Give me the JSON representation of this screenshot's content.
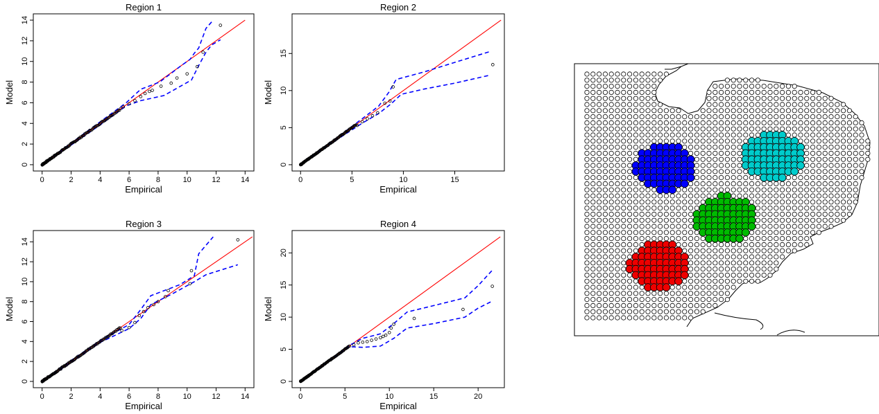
{
  "figure": {
    "panels_label": "qq-plots",
    "map_label": "region-map"
  },
  "chart_data": [
    {
      "type": "scatter",
      "title": "Region  1",
      "xlabel": "Empirical",
      "ylabel": "Model",
      "xlim": [
        0,
        14
      ],
      "ylim": [
        0,
        14
      ],
      "xticks": [
        0,
        2,
        4,
        6,
        8,
        10,
        12,
        14
      ],
      "yticks": [
        0,
        2,
        4,
        6,
        8,
        10,
        12,
        14
      ],
      "reference_line": "y = x",
      "colors": {
        "points": "#000000",
        "reference": "#ff0000",
        "envelope": "#0000ff"
      },
      "points_tail": [
        [
          5.6,
          5.6
        ],
        [
          6.0,
          5.9
        ],
        [
          6.4,
          6.2
        ],
        [
          6.8,
          6.6
        ],
        [
          7.1,
          6.9
        ],
        [
          7.4,
          7.1
        ],
        [
          7.6,
          7.2
        ],
        [
          8.2,
          7.6
        ],
        [
          8.9,
          7.9
        ],
        [
          9.3,
          8.4
        ],
        [
          10.0,
          8.8
        ],
        [
          10.7,
          9.5
        ],
        [
          11.1,
          10.9
        ],
        [
          12.3,
          13.5
        ]
      ],
      "envelope_upper": [
        [
          0,
          0.05
        ],
        [
          2,
          2.1
        ],
        [
          4,
          4.15
        ],
        [
          5.8,
          6.0
        ],
        [
          6.8,
          7.3
        ],
        [
          8.1,
          8.0
        ],
        [
          9.6,
          9.6
        ],
        [
          10.2,
          10.2
        ],
        [
          10.5,
          10.8
        ],
        [
          10.8,
          11.3
        ],
        [
          11.3,
          13.2
        ],
        [
          11.8,
          14
        ]
      ],
      "envelope_lower": [
        [
          0,
          -0.05
        ],
        [
          2,
          1.9
        ],
        [
          4,
          3.85
        ],
        [
          5.8,
          5.7
        ],
        [
          6.8,
          6.2
        ],
        [
          8.4,
          6.7
        ],
        [
          10.3,
          8.2
        ],
        [
          10.8,
          9.6
        ],
        [
          11.3,
          10.9
        ],
        [
          11.7,
          11.6
        ],
        [
          12.3,
          12.1
        ]
      ]
    },
    {
      "type": "scatter",
      "title": "Region  2",
      "xlabel": "Empirical",
      "ylabel": "Model",
      "xlim": [
        0,
        19
      ],
      "ylim": [
        0,
        19.5
      ],
      "xticks": [
        0,
        5,
        10,
        15
      ],
      "yticks": [
        0,
        5,
        10,
        15
      ],
      "reference_line": "y = x",
      "colors": {
        "points": "#000000",
        "reference": "#ff0000",
        "envelope": "#0000ff"
      },
      "points_tail": [
        [
          5.5,
          5.3
        ],
        [
          6.0,
          5.8
        ],
        [
          6.5,
          6.2
        ],
        [
          7.0,
          6.6
        ],
        [
          7.5,
          7.0
        ],
        [
          8.2,
          8.3
        ],
        [
          8.7,
          8.6
        ],
        [
          9.0,
          10.5
        ],
        [
          18.7,
          13.5
        ]
      ],
      "envelope_upper": [
        [
          0,
          0.05
        ],
        [
          3,
          3.1
        ],
        [
          6,
          6.2
        ],
        [
          7.6,
          7.9
        ],
        [
          8.6,
          9.8
        ],
        [
          9.3,
          11.5
        ],
        [
          12,
          12.5
        ],
        [
          15,
          13.8
        ],
        [
          18.5,
          15.3
        ]
      ],
      "envelope_lower": [
        [
          0,
          -0.05
        ],
        [
          3,
          2.9
        ],
        [
          6,
          5.6
        ],
        [
          7.6,
          6.9
        ],
        [
          8.8,
          8.2
        ],
        [
          9.8,
          9.5
        ],
        [
          12,
          10.2
        ],
        [
          15,
          11.0
        ],
        [
          18.5,
          12.1
        ]
      ]
    },
    {
      "type": "scatter",
      "title": "Region  3",
      "xlabel": "Empirical",
      "ylabel": "Model",
      "xlim": [
        0,
        14
      ],
      "ylim": [
        0,
        14.5
      ],
      "xticks": [
        0,
        2,
        4,
        6,
        8,
        10,
        12,
        14
      ],
      "yticks": [
        0,
        2,
        4,
        6,
        8,
        10,
        12,
        14
      ],
      "reference_line": "y = x",
      "colors": {
        "points": "#000000",
        "reference": "#ff0000",
        "envelope": "#0000ff"
      },
      "points_tail": [
        [
          5.5,
          5.1
        ],
        [
          6.0,
          5.4
        ],
        [
          6.4,
          5.9
        ],
        [
          6.7,
          6.6
        ],
        [
          7.0,
          7.0
        ],
        [
          7.3,
          7.4
        ],
        [
          7.7,
          7.7
        ],
        [
          8.0,
          8.0
        ],
        [
          8.5,
          8.5
        ],
        [
          8.7,
          9.1
        ],
        [
          10.2,
          9.8
        ],
        [
          10.3,
          11.1
        ],
        [
          13.5,
          14.2
        ]
      ],
      "envelope_upper": [
        [
          0,
          0.05
        ],
        [
          2,
          2.1
        ],
        [
          4,
          4.1
        ],
        [
          6,
          5.7
        ],
        [
          6.8,
          7.2
        ],
        [
          7.5,
          8.6
        ],
        [
          9.5,
          9.7
        ],
        [
          10.5,
          10.6
        ],
        [
          10.8,
          12.8
        ],
        [
          11.8,
          14.5
        ]
      ],
      "envelope_lower": [
        [
          0,
          -0.05
        ],
        [
          2,
          1.9
        ],
        [
          4,
          3.9
        ],
        [
          6,
          5.3
        ],
        [
          6.8,
          6.3
        ],
        [
          7.5,
          7.7
        ],
        [
          9.0,
          8.8
        ],
        [
          10.5,
          10.0
        ],
        [
          11.3,
          10.7
        ],
        [
          13.5,
          11.7
        ]
      ]
    },
    {
      "type": "scatter",
      "title": "Region  4",
      "xlabel": "Empirical",
      "ylabel": "Model",
      "xlim": [
        0,
        22
      ],
      "ylim": [
        0,
        22.5
      ],
      "xticks": [
        0,
        5,
        10,
        15,
        20
      ],
      "yticks": [
        0,
        5,
        10,
        15,
        20
      ],
      "reference_line": "y = x",
      "colors": {
        "points": "#000000",
        "reference": "#ff0000",
        "envelope": "#0000ff"
      },
      "points_tail": [
        [
          5.5,
          5.5
        ],
        [
          6.0,
          5.7
        ],
        [
          6.5,
          6.0
        ],
        [
          7.0,
          6.1
        ],
        [
          7.5,
          6.2
        ],
        [
          8.0,
          6.4
        ],
        [
          8.5,
          6.6
        ],
        [
          9.0,
          6.8
        ],
        [
          9.3,
          7.0
        ],
        [
          9.6,
          7.2
        ],
        [
          10.0,
          7.6
        ],
        [
          10.2,
          8.3
        ],
        [
          10.5,
          8.9
        ],
        [
          12.8,
          9.8
        ],
        [
          18.3,
          11.2
        ],
        [
          21.6,
          14.8
        ]
      ],
      "envelope_upper": [
        [
          0,
          0.05
        ],
        [
          3,
          3.1
        ],
        [
          5.5,
          5.6
        ],
        [
          7,
          6.7
        ],
        [
          9,
          7.4
        ],
        [
          10.5,
          9.0
        ],
        [
          12,
          10.8
        ],
        [
          15,
          11.8
        ],
        [
          18.5,
          13.0
        ],
        [
          20,
          14.9
        ],
        [
          21.6,
          17.3
        ]
      ],
      "envelope_lower": [
        [
          0,
          -0.05
        ],
        [
          3,
          2.9
        ],
        [
          5.5,
          5.4
        ],
        [
          7,
          5.3
        ],
        [
          9,
          5.5
        ],
        [
          10.5,
          6.7
        ],
        [
          12,
          8.3
        ],
        [
          15,
          9.0
        ],
        [
          18.5,
          10.0
        ],
        [
          20,
          11.4
        ],
        [
          21.6,
          12.5
        ]
      ]
    }
  ],
  "map": {
    "grid_fill": "#ffffff",
    "grid_stroke": "#000000",
    "regions": [
      {
        "color": "#0000ff",
        "legend": ""
      },
      {
        "color": "#00cccc",
        "legend": ""
      },
      {
        "color": "#00bb00",
        "legend": ""
      },
      {
        "color": "#ee0000",
        "legend": ""
      }
    ]
  }
}
